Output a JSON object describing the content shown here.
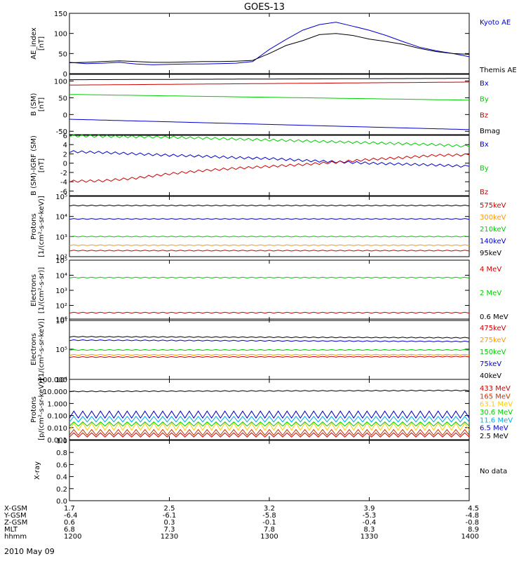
{
  "title": "GOES-13",
  "date_label": "2010 May 09",
  "ephemeris": {
    "rows": [
      {
        "label": "X-GSM",
        "values": [
          "1.7",
          "2.5",
          "3.2",
          "3.9",
          "4.5"
        ]
      },
      {
        "label": "Y-GSM",
        "values": [
          "-6.4",
          "-6.1",
          "-5.8",
          "-5.3",
          "-4.8"
        ]
      },
      {
        "label": "Z-GSM",
        "values": [
          "0.6",
          "0.3",
          "-0.1",
          "-0.4",
          "-0.8"
        ]
      },
      {
        "label": "MLT",
        "values": [
          "6.8",
          "7.3",
          "7.8",
          "8.3",
          "8.9"
        ]
      },
      {
        "label": "hhmm",
        "values": [
          "1200",
          "1230",
          "1300",
          "1330",
          "1400"
        ]
      }
    ]
  },
  "chart_data": [
    {
      "type": "line",
      "ylabel": "AE_index\n[nT]",
      "ylim": [
        0,
        150
      ],
      "yticks": [
        0,
        50,
        100,
        150
      ],
      "yticklabels": [
        "0",
        "50",
        "100",
        "150"
      ],
      "x": [
        0,
        5,
        10,
        15,
        20,
        25,
        30,
        35,
        40,
        45,
        50,
        55,
        60,
        65,
        70,
        75,
        80,
        85,
        90,
        95,
        100,
        105,
        110,
        115,
        120
      ],
      "series": [
        {
          "name": "Kyoto AE",
          "color": "#0000cc",
          "values": [
            28,
            25,
            26,
            28,
            24,
            22,
            23,
            24,
            24,
            25,
            26,
            30,
            60,
            85,
            108,
            122,
            128,
            118,
            108,
            95,
            80,
            66,
            57,
            50,
            42
          ]
        },
        {
          "name": "Themis AE",
          "color": "#000000",
          "values": [
            27,
            28,
            30,
            32,
            30,
            28,
            28,
            29,
            30,
            30,
            31,
            33,
            50,
            70,
            82,
            97,
            100,
            95,
            86,
            80,
            73,
            63,
            55,
            50,
            48
          ]
        }
      ]
    },
    {
      "type": "line",
      "ylabel": "B (SM)\n[nT]",
      "ylim": [
        -60,
        120
      ],
      "yticks": [
        -50,
        0,
        50,
        100
      ],
      "yticklabels": [
        "-50",
        "0",
        "50",
        "100"
      ],
      "x": [
        0,
        120
      ],
      "series": [
        {
          "name": "Bx",
          "color": "#0000cc",
          "values": [
            -14,
            -45
          ]
        },
        {
          "name": "By",
          "color": "#00cc00",
          "values": [
            60,
            43
          ]
        },
        {
          "name": "Bz",
          "color": "#cc0000",
          "values": [
            88,
            97
          ]
        },
        {
          "name": "Bmag",
          "color": "#000000",
          "values": [
            104,
            108
          ]
        }
      ]
    },
    {
      "type": "line",
      "ylabel": "B (SM)-IGRF (SM)\n[nT]",
      "ylim": [
        -7,
        6
      ],
      "yticks": [
        -6,
        -4,
        -2,
        0,
        2,
        4,
        6
      ],
      "yticklabels": [
        "-6",
        "-4",
        "-2",
        "0",
        "2",
        "4",
        "6"
      ],
      "x": [
        0,
        10,
        20,
        30,
        40,
        50,
        60,
        70,
        80,
        90,
        100,
        110,
        120
      ],
      "series": [
        {
          "name": "Bx",
          "color": "#0000cc",
          "values": [
            2.5,
            2.3,
            2.0,
            1.7,
            1.5,
            1.2,
            1.0,
            0.6,
            0.3,
            0.0,
            -0.2,
            -0.4,
            -0.7
          ]
        },
        {
          "name": "By",
          "color": "#00cc00",
          "values": [
            5.9,
            5.8,
            5.7,
            5.6,
            5.4,
            5.2,
            5.0,
            4.8,
            4.6,
            4.4,
            4.2,
            4.0,
            3.6
          ]
        },
        {
          "name": "Bz",
          "color": "#cc0000",
          "values": [
            -3.9,
            -3.8,
            -3.2,
            -2.3,
            -1.6,
            -1.1,
            -0.7,
            -0.3,
            0.2,
            0.8,
            1.2,
            1.7,
            1.8
          ]
        }
      ]
    },
    {
      "type": "line",
      "log": true,
      "ylabel": "Protons\n[1/(cm²-s-sr-keV)]",
      "ylim": [
        100,
        100000
      ],
      "yticks": [
        100,
        1000,
        10000,
        100000
      ],
      "yticklabels": [
        "10²",
        "10³",
        "10⁴",
        "10⁵"
      ],
      "x": [
        0,
        120
      ],
      "series": [
        {
          "name": "575keV",
          "color": "#cc0000",
          "values": [
            200,
            200
          ]
        },
        {
          "name": "300keV",
          "color": "#ff9900",
          "values": [
            370,
            370
          ]
        },
        {
          "name": "210keV",
          "color": "#00cc00",
          "values": [
            1000,
            1000
          ]
        },
        {
          "name": "140keV",
          "color": "#0000cc",
          "values": [
            7500,
            7500
          ]
        },
        {
          "name": "95keV",
          "color": "#000000",
          "values": [
            35000,
            35000
          ]
        }
      ]
    },
    {
      "type": "line",
      "log": true,
      "ylabel": "Electrons\n[1/(cm²-s-sr)]",
      "ylim": [
        10,
        100000
      ],
      "yticks": [
        10,
        100,
        1000,
        10000,
        100000
      ],
      "yticklabels": [
        "10¹",
        "10²",
        "10³",
        "10⁴",
        "10⁵"
      ],
      "x": [
        0,
        120
      ],
      "series": [
        {
          "name": "4 MeV",
          "color": "#cc0000",
          "values": [
            33,
            33
          ]
        },
        {
          "name": "2 MeV",
          "color": "#00cc00",
          "values": [
            7000,
            7000
          ]
        },
        {
          "name": "0.6 MeV",
          "color": "#000000",
          "values": [
            null,
            null
          ]
        }
      ]
    },
    {
      "type": "line",
      "log": true,
      "ylabel": "Electrons\n[1/(cm²-s-sr-keV)]",
      "ylim": [
        10000,
        1000000
      ],
      "yticks": [
        10000,
        100000,
        1000000
      ],
      "yticklabels": [
        "10⁴",
        "10⁵",
        "10⁶"
      ],
      "x": [
        0,
        120
      ],
      "series": [
        {
          "name": "475keV",
          "color": "#cc0000",
          "values": [
            55000,
            57000
          ]
        },
        {
          "name": "275keV",
          "color": "#ff9900",
          "values": [
            65000,
            66000
          ]
        },
        {
          "name": "150keV",
          "color": "#00cc00",
          "values": [
            95000,
            95000
          ]
        },
        {
          "name": "75keV",
          "color": "#0000cc",
          "values": [
            200000,
            180000
          ]
        },
        {
          "name": "40keV",
          "color": "#000000",
          "values": [
            260000,
            240000
          ]
        }
      ]
    },
    {
      "type": "line",
      "log": true,
      "ylabel": "Protons\n[p/(cm²-s-sr-keV)]",
      "ylim": [
        0.001,
        100
      ],
      "yticks": [
        0.001,
        0.01,
        0.1,
        1,
        10,
        100
      ],
      "yticklabels": [
        "0.001",
        "0.010",
        "0.100",
        "1.000",
        "10.000",
        "100.000"
      ],
      "x": [
        0,
        120
      ],
      "series": [
        {
          "name": "433 MeV",
          "color": "#cc0000",
          "values": [
            0.0025,
            0.0025
          ]
        },
        {
          "name": "165 MeV",
          "color": "#cc3300",
          "values": [
            0.004,
            0.004
          ]
        },
        {
          "name": "63.1 MeV",
          "color": "#ffcc00",
          "values": [
            0.012,
            0.012
          ]
        },
        {
          "name": "30.6 MeV",
          "color": "#00cc00",
          "values": [
            0.02,
            0.02
          ]
        },
        {
          "name": "11.6 MeV",
          "color": "#00aaee",
          "values": [
            0.05,
            0.05
          ]
        },
        {
          "name": "6.5 MeV",
          "color": "#0000cc",
          "values": [
            0.12,
            0.12
          ]
        },
        {
          "name": "2.5 MeV",
          "color": "#000000",
          "values": [
            10,
            12
          ]
        }
      ]
    },
    {
      "type": "line",
      "ylabel": "X-ray",
      "ylim": [
        0,
        1
      ],
      "yticks": [
        0,
        0.2,
        0.4,
        0.6,
        0.8,
        1.0
      ],
      "yticklabels": [
        "0.0",
        "0.2",
        "0.4",
        "0.6",
        "0.8",
        "1.0"
      ],
      "x": [],
      "series": [],
      "note": "No data"
    }
  ]
}
